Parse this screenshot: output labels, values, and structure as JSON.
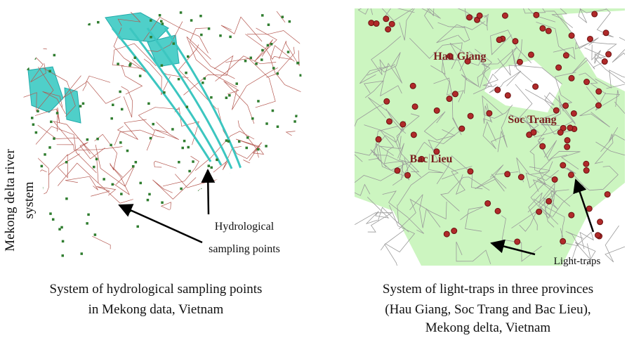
{
  "left_panel": {
    "side_label_lines": [
      "Mekong delta river",
      "system"
    ],
    "annotation_lines": [
      "Hydrological",
      "sampling points"
    ],
    "caption_lines": [
      "System of hydrological sampling points",
      "in Mekong data, Vietnam"
    ]
  },
  "right_panel": {
    "province_labels": [
      "Hau Giang",
      "Soc Trang",
      "Bac Lieu"
    ],
    "annotation": "Light-traps",
    "caption_lines": [
      "System of light-traps in three provinces",
      "(Hau Giang, Soc Trang and Bac Lieu),",
      "Mekong delta, Vietnam"
    ]
  }
}
